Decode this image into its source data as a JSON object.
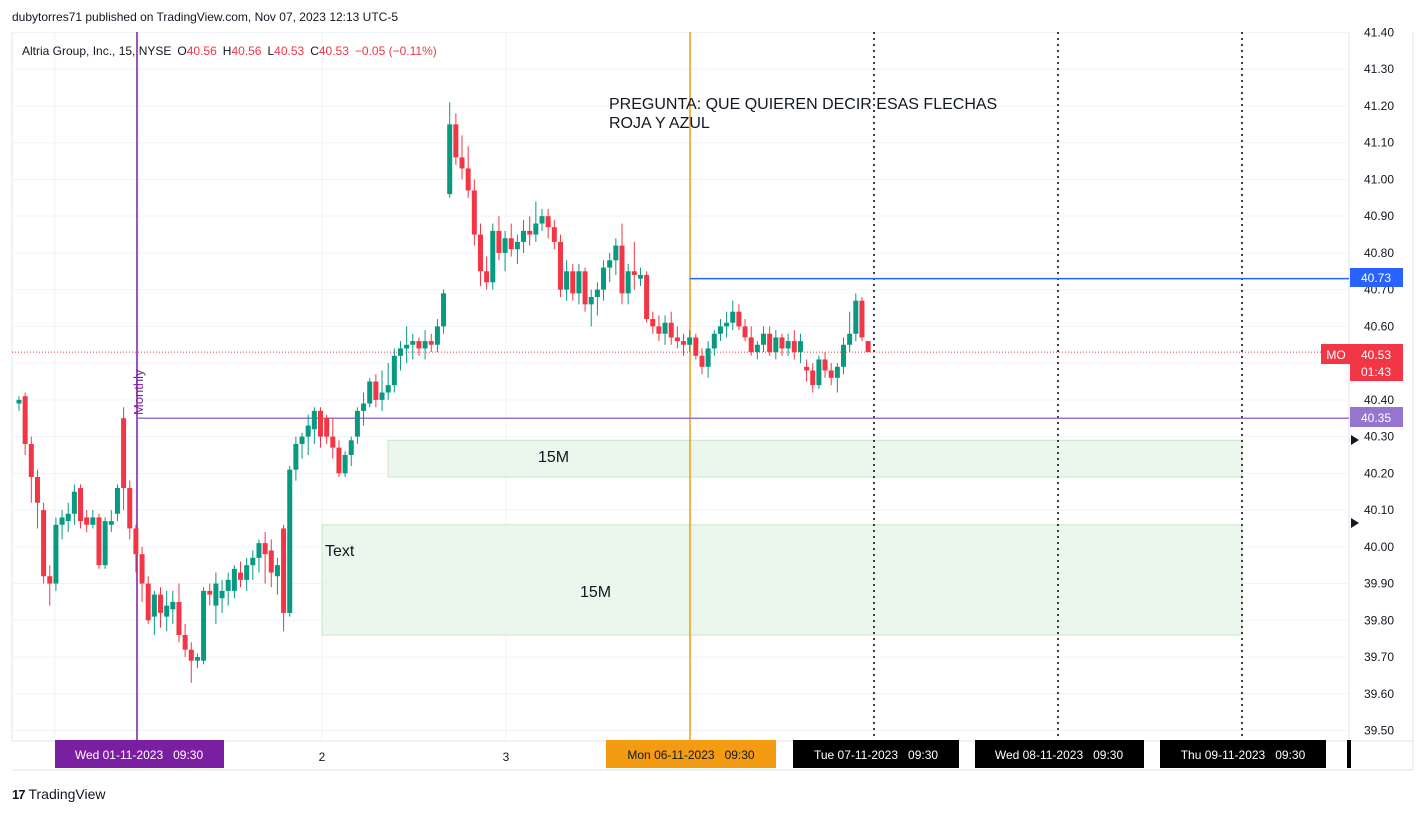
{
  "header": {
    "published": "dubytorres71 published on TradingView.com, Nov 07, 2023 12:13 UTC-5"
  },
  "legend": {
    "symbol": "Altria Group, Inc., 15, NYSE",
    "o_label": "O",
    "o_value": "40.56",
    "h_label": "H",
    "h_value": "40.56",
    "l_label": "L",
    "l_value": "40.53",
    "c_label": "C",
    "c_value": "40.53",
    "change": "−0.05 (−0.11%)"
  },
  "footer": {
    "brand": "TradingView"
  },
  "colors": {
    "up": "#089981",
    "down": "#f23645",
    "blue_line": "#2962ff",
    "purple_line": "#9575cd",
    "monthly_line": "#7b1fa2",
    "orange_line": "#f39c12",
    "zone_fill": "#e8f5e9"
  },
  "annotations": {
    "question_line1": "PREGUNTA: QUE QUIEREN DECIR ESAS FLECHAS",
    "question_line2": "ROJA Y AZUL",
    "zone_upper_label": "15M",
    "zone_lower_label": "15M",
    "text_label": "Text",
    "monthly_label": "Monthly"
  },
  "price_tags": {
    "blue": "40.73",
    "purple": "40.35",
    "symbol": "MO",
    "last": "40.53",
    "countdown": "01:43"
  },
  "time_tags": {
    "monthly": "Wed 01-11-2023   09:30",
    "orange": "Mon 06-11-2023   09:30",
    "d7": "Tue 07-11-2023   09:30",
    "d8": "Wed 08-11-2023   09:30",
    "d9": "Thu 09-11-2023   09:30",
    "tick2": "2",
    "tick3": "3"
  },
  "chart_data": {
    "type": "candlestick",
    "ylim": [
      39.45,
      41.4
    ],
    "y_ticks": [
      "41.40",
      "41.30",
      "41.20",
      "41.10",
      "41.00",
      "40.90",
      "40.80",
      "40.70",
      "40.60",
      "40.50",
      "40.40",
      "40.30",
      "40.20",
      "40.10",
      "40.00",
      "39.90",
      "39.80",
      "39.70",
      "39.60",
      "39.50"
    ],
    "horizontal_lines": [
      {
        "price": 40.73,
        "color": "#2962ff"
      },
      {
        "price": 40.35,
        "color": "#9575cd"
      },
      {
        "price": 40.53,
        "color": "#f23645",
        "style": "dotted"
      }
    ],
    "zones": [
      {
        "label": "15M",
        "top": 40.29,
        "bottom": 40.19
      },
      {
        "label": "15M",
        "top": 40.06,
        "bottom": 39.76
      }
    ],
    "candles": [
      [
        40.39,
        40.41,
        40.37,
        40.4
      ],
      [
        40.41,
        40.42,
        40.25,
        40.28
      ],
      [
        40.28,
        40.3,
        40.12,
        40.19
      ],
      [
        40.19,
        40.21,
        40.05,
        40.12
      ],
      [
        40.1,
        40.12,
        39.9,
        39.92
      ],
      [
        39.92,
        39.95,
        39.84,
        39.9
      ],
      [
        39.9,
        40.08,
        39.88,
        40.06
      ],
      [
        40.06,
        40.1,
        40.02,
        40.08
      ],
      [
        40.07,
        40.12,
        40.04,
        40.09
      ],
      [
        40.09,
        40.17,
        40.06,
        40.15
      ],
      [
        40.16,
        40.17,
        40.05,
        40.07
      ],
      [
        40.08,
        40.1,
        40.04,
        40.06
      ],
      [
        40.06,
        40.1,
        40.05,
        40.08
      ],
      [
        40.08,
        40.09,
        39.94,
        39.95
      ],
      [
        39.95,
        40.08,
        39.94,
        40.07
      ],
      [
        40.06,
        40.1,
        40.04,
        40.07
      ],
      [
        40.09,
        40.17,
        40.07,
        40.16
      ],
      [
        40.35,
        40.38,
        40.1,
        40.16
      ],
      [
        40.16,
        40.18,
        40.02,
        40.05
      ],
      [
        40.05,
        40.06,
        39.93,
        39.98
      ],
      [
        39.98,
        40.0,
        39.85,
        39.9
      ],
      [
        39.9,
        39.92,
        39.79,
        39.8
      ],
      [
        39.81,
        39.88,
        39.76,
        39.87
      ],
      [
        39.87,
        39.89,
        39.78,
        39.82
      ],
      [
        39.81,
        39.88,
        39.77,
        39.84
      ],
      [
        39.83,
        39.88,
        39.79,
        39.85
      ],
      [
        39.85,
        39.9,
        39.74,
        39.76
      ],
      [
        39.76,
        39.79,
        39.7,
        39.72
      ],
      [
        39.72,
        39.74,
        39.63,
        39.69
      ],
      [
        39.69,
        39.71,
        39.67,
        39.7
      ],
      [
        39.69,
        39.89,
        39.68,
        39.88
      ],
      [
        39.88,
        39.9,
        39.84,
        39.87
      ],
      [
        39.84,
        39.93,
        39.79,
        39.9
      ],
      [
        39.86,
        39.91,
        39.82,
        39.88
      ],
      [
        39.88,
        39.93,
        39.84,
        39.91
      ],
      [
        39.88,
        39.95,
        39.86,
        39.94
      ],
      [
        39.93,
        39.96,
        39.89,
        39.91
      ],
      [
        39.91,
        39.97,
        39.88,
        39.95
      ],
      [
        39.95,
        39.99,
        39.91,
        39.97
      ],
      [
        39.97,
        40.02,
        39.93,
        40.01
      ],
      [
        40.01,
        40.04,
        39.9,
        39.98
      ],
      [
        39.99,
        40.02,
        39.89,
        39.93
      ],
      [
        39.92,
        39.97,
        39.87,
        39.95
      ],
      [
        40.05,
        40.06,
        39.77,
        39.82
      ],
      [
        39.82,
        40.22,
        39.81,
        40.21
      ],
      [
        40.21,
        40.3,
        40.18,
        40.28
      ],
      [
        40.28,
        40.31,
        40.24,
        40.3
      ],
      [
        40.3,
        40.36,
        40.25,
        40.33
      ],
      [
        40.32,
        40.38,
        40.28,
        40.37
      ],
      [
        40.37,
        40.38,
        40.27,
        40.3
      ],
      [
        40.35,
        40.36,
        40.28,
        40.3
      ],
      [
        40.3,
        40.35,
        40.24,
        40.27
      ],
      [
        40.27,
        40.29,
        40.19,
        40.2
      ],
      [
        40.2,
        40.26,
        40.19,
        40.25
      ],
      [
        40.25,
        40.3,
        40.22,
        40.29
      ],
      [
        40.3,
        40.38,
        40.28,
        40.37
      ],
      [
        40.37,
        40.42,
        40.33,
        40.39
      ],
      [
        40.39,
        40.46,
        40.38,
        40.45
      ],
      [
        40.45,
        40.47,
        40.38,
        40.4
      ],
      [
        40.4,
        40.48,
        40.37,
        40.42
      ],
      [
        40.42,
        40.5,
        40.4,
        40.44
      ],
      [
        40.44,
        40.54,
        40.42,
        40.52
      ],
      [
        40.52,
        40.56,
        40.48,
        40.54
      ],
      [
        40.54,
        40.6,
        40.5,
        40.55
      ],
      [
        40.55,
        40.58,
        40.51,
        40.56
      ],
      [
        40.56,
        40.57,
        40.52,
        40.54
      ],
      [
        40.54,
        40.59,
        40.51,
        40.56
      ],
      [
        40.56,
        40.58,
        40.53,
        40.55
      ],
      [
        40.55,
        40.62,
        40.53,
        40.6
      ],
      [
        40.6,
        40.7,
        40.58,
        40.69
      ],
      [
        40.96,
        41.21,
        40.95,
        41.15
      ],
      [
        41.15,
        41.18,
        41.04,
        41.06
      ],
      [
        41.06,
        41.12,
        41.0,
        41.03
      ],
      [
        41.03,
        41.09,
        40.95,
        40.97
      ],
      [
        40.97,
        41.0,
        40.82,
        40.85
      ],
      [
        40.85,
        40.88,
        40.71,
        40.75
      ],
      [
        40.75,
        40.79,
        40.7,
        40.72
      ],
      [
        40.72,
        40.88,
        40.7,
        40.86
      ],
      [
        40.86,
        40.9,
        40.78,
        40.8
      ],
      [
        40.8,
        40.86,
        40.75,
        40.84
      ],
      [
        40.84,
        40.88,
        40.79,
        40.81
      ],
      [
        40.81,
        40.85,
        40.77,
        40.83
      ],
      [
        40.83,
        40.89,
        40.8,
        40.86
      ],
      [
        40.86,
        40.9,
        40.82,
        40.85
      ],
      [
        40.85,
        40.94,
        40.83,
        40.88
      ],
      [
        40.88,
        40.92,
        40.86,
        40.9
      ],
      [
        40.9,
        40.92,
        40.84,
        40.87
      ],
      [
        40.87,
        40.89,
        40.81,
        40.83
      ],
      [
        40.83,
        40.85,
        40.68,
        40.7
      ],
      [
        40.7,
        40.78,
        40.67,
        40.75
      ],
      [
        40.75,
        40.77,
        40.67,
        40.69
      ],
      [
        40.69,
        40.77,
        40.66,
        40.75
      ],
      [
        40.75,
        40.76,
        40.64,
        40.66
      ],
      [
        40.66,
        40.7,
        40.6,
        40.68
      ],
      [
        40.68,
        40.72,
        40.63,
        40.7
      ],
      [
        40.7,
        40.78,
        40.67,
        40.76
      ],
      [
        40.76,
        40.8,
        40.72,
        40.78
      ],
      [
        40.78,
        40.84,
        40.74,
        40.82
      ],
      [
        40.82,
        40.88,
        40.66,
        40.69
      ],
      [
        40.69,
        40.77,
        40.66,
        40.75
      ],
      [
        40.75,
        40.83,
        40.7,
        40.74
      ],
      [
        40.73,
        40.76,
        40.71,
        40.74
      ],
      [
        40.74,
        40.75,
        40.61,
        40.62
      ],
      [
        40.62,
        40.64,
        40.58,
        40.6
      ],
      [
        40.6,
        40.63,
        40.56,
        40.58
      ],
      [
        40.58,
        40.63,
        40.55,
        40.61
      ],
      [
        40.61,
        40.64,
        40.55,
        40.57
      ],
      [
        40.57,
        40.6,
        40.54,
        40.56
      ],
      [
        40.56,
        40.58,
        40.52,
        40.55
      ],
      [
        40.55,
        40.59,
        40.53,
        40.57
      ],
      [
        40.57,
        40.58,
        40.51,
        40.52
      ],
      [
        40.52,
        40.54,
        40.47,
        40.49
      ],
      [
        40.49,
        40.56,
        40.46,
        40.54
      ],
      [
        40.54,
        40.59,
        40.52,
        40.58
      ],
      [
        40.58,
        40.62,
        40.56,
        40.6
      ],
      [
        40.6,
        40.64,
        40.57,
        40.61
      ],
      [
        40.61,
        40.67,
        40.59,
        40.64
      ],
      [
        40.64,
        40.66,
        40.59,
        40.6
      ],
      [
        40.6,
        40.62,
        40.56,
        40.57
      ],
      [
        40.57,
        40.6,
        40.52,
        40.53
      ],
      [
        40.53,
        40.56,
        40.51,
        40.55
      ],
      [
        40.55,
        40.6,
        40.53,
        40.58
      ],
      [
        40.58,
        40.6,
        40.52,
        40.53
      ],
      [
        40.53,
        40.59,
        40.51,
        40.57
      ],
      [
        40.57,
        40.58,
        40.52,
        40.54
      ],
      [
        40.54,
        40.58,
        40.52,
        40.56
      ],
      [
        40.56,
        40.59,
        40.51,
        40.53
      ],
      [
        40.53,
        40.58,
        40.5,
        40.56
      ],
      [
        40.49,
        40.51,
        40.45,
        40.48
      ],
      [
        40.48,
        40.5,
        40.42,
        40.44
      ],
      [
        40.44,
        40.52,
        40.43,
        40.51
      ],
      [
        40.51,
        40.53,
        40.46,
        40.48
      ],
      [
        40.48,
        40.5,
        40.44,
        40.46
      ],
      [
        40.46,
        40.5,
        40.42,
        40.49
      ],
      [
        40.49,
        40.57,
        40.47,
        40.55
      ],
      [
        40.55,
        40.64,
        40.53,
        40.58
      ],
      [
        40.58,
        40.69,
        40.56,
        40.67
      ],
      [
        40.67,
        40.68,
        40.56,
        40.57
      ],
      [
        40.56,
        40.56,
        40.53,
        40.53
      ]
    ]
  }
}
